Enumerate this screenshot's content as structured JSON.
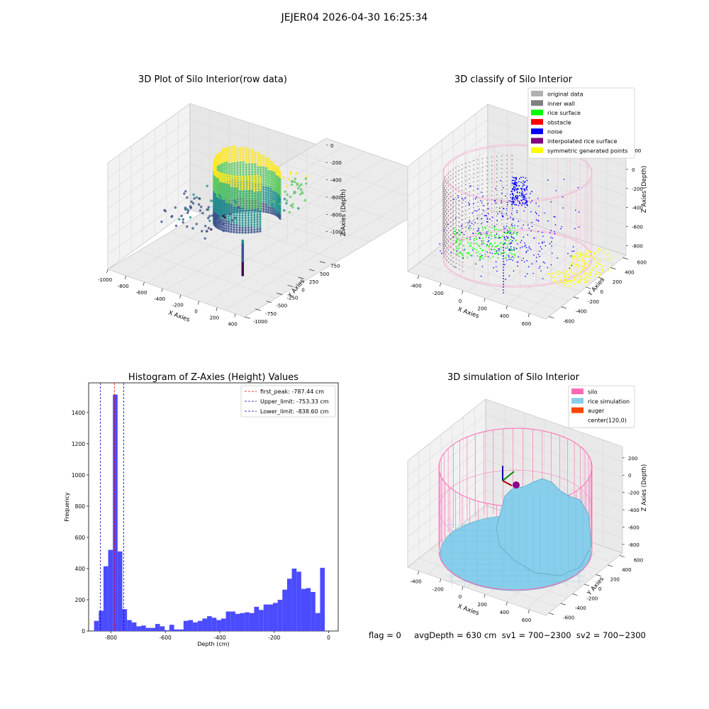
{
  "figure": {
    "suptitle": "JEJER04 2026-04-30 16:25:34",
    "footer": "flag = 0     avgDepth = 630 cm  sv1 = 700~2300  sv2 = 700~2300"
  },
  "colors": {
    "viridis": [
      "#440154",
      "#3b528b",
      "#21918c",
      "#5ec962",
      "#fde725"
    ],
    "pane": "#f2f2f2",
    "grid": "#d9d9d9",
    "hist_bar": "#4b4bff",
    "silo": "#ff69b4",
    "rice_sim": "#87ceeb",
    "auger": "#ff4500",
    "peak_line": "#ff0000",
    "limit_line": "#0000cc"
  },
  "chart_data": [
    {
      "id": "raw",
      "type": "scatter",
      "dims": 3,
      "title": "3D Plot of Silo Interior(row data)",
      "xlabel": "X Axies",
      "ylabel": "Y Axies",
      "zlabel": "Z Axies (Depth)",
      "xlim": [
        -1000,
        500
      ],
      "ylim": [
        -1000,
        900
      ],
      "zlim": [
        -1150,
        80
      ],
      "xticks": [
        -1000,
        -800,
        -600,
        -400,
        -200,
        0,
        200,
        400
      ],
      "yticks": [
        -1000,
        -750,
        -500,
        -250,
        0,
        250,
        500,
        750
      ],
      "zticks": [
        -1000,
        -800,
        -600,
        -400,
        -200,
        0
      ],
      "colormap": "viridis",
      "description_series": [
        {
          "name": "",
          "shape": "partial ring wall",
          "center": [
            -100,
            250
          ],
          "radius": 320,
          "z_range": [
            -820,
            -80
          ]
        },
        {
          "name": "",
          "shape": "vertical drop line",
          "x": 180,
          "y": -300,
          "z_range": [
            -1050,
            -650
          ]
        },
        {
          "name": "",
          "shape": "scattered low cloud",
          "x_range": [
            -850,
            -200
          ],
          "y_range": [
            -300,
            700
          ],
          "z_range": [
            -900,
            -650
          ]
        }
      ]
    },
    {
      "id": "classify",
      "type": "scatter",
      "dims": 3,
      "title": "3D classify of Silo Interior",
      "xlabel": "X Axies",
      "ylabel": "Y Axies",
      "zlabel": "Z Axies (Depth)",
      "xlim": [
        -500,
        750
      ],
      "ylim": [
        -650,
        650
      ],
      "zlim": [
        -900,
        200
      ],
      "xticks": [
        -400,
        -200,
        0,
        200,
        400,
        600
      ],
      "yticks": [
        -600,
        -400,
        -200,
        0,
        200,
        400,
        600
      ],
      "zticks": [
        -800,
        -600,
        -400,
        -200,
        0,
        200
      ],
      "legend_position": "upper right",
      "legend": [
        {
          "label": "original data",
          "color": "#b0b0b0"
        },
        {
          "label": "inner wall",
          "color": "#808080"
        },
        {
          "label": "rice surface",
          "color": "#00ff00"
        },
        {
          "label": "obstacle",
          "color": "#ff0000"
        },
        {
          "label": "noise",
          "color": "#0000ff"
        },
        {
          "label": "interpolated rice surface",
          "color": "#800080"
        },
        {
          "label": "symmetric generated points",
          "color": "#ffff00"
        }
      ]
    },
    {
      "id": "hist",
      "type": "bar",
      "title": "Histogram of Z-Axies (Height) Values",
      "xlabel": "Depth (cm)",
      "ylabel": "Frequency",
      "xlim": [
        -882,
        35
      ],
      "ylim": [
        0,
        1590
      ],
      "xticks": [
        -800,
        -600,
        -400,
        -200,
        0
      ],
      "yticks": [
        0,
        200,
        400,
        600,
        800,
        1000,
        1200,
        1400
      ],
      "bin_edges_start": -862,
      "bin_width": 17.3,
      "values": [
        65,
        130,
        415,
        520,
        1515,
        510,
        140,
        70,
        55,
        30,
        35,
        20,
        20,
        45,
        30,
        5,
        40,
        10,
        10,
        65,
        70,
        55,
        65,
        80,
        95,
        85,
        70,
        80,
        125,
        125,
        110,
        115,
        120,
        115,
        155,
        135,
        170,
        170,
        180,
        200,
        265,
        335,
        400,
        380,
        270,
        275,
        250,
        115,
        405
      ],
      "vlines": [
        {
          "x": -787.44,
          "label": "first_peak: -787.44 cm",
          "color": "#ff0000"
        },
        {
          "x": -753.33,
          "label": "Upper_limit: -753.33 cm",
          "color": "#0000cc"
        },
        {
          "x": -838.6,
          "label": "Lower_limit: -838.60 cm",
          "color": "#0000cc"
        }
      ],
      "legend_position": "upper right"
    },
    {
      "id": "sim",
      "type": "area",
      "dims": 3,
      "title": "3D simulation of Silo Interior",
      "xlabel": "X Axies",
      "ylabel": "Y Axies",
      "zlabel": "Z Axies (Depth)",
      "xlim": [
        -500,
        750
      ],
      "ylim": [
        -650,
        650
      ],
      "zlim": [
        -900,
        330
      ],
      "xticks": [
        -400,
        -200,
        0,
        200,
        400,
        600
      ],
      "yticks": [
        -600,
        -400,
        -200,
        0,
        200,
        400,
        600
      ],
      "zticks": [
        -800,
        -600,
        -400,
        -200,
        0,
        200
      ],
      "legend_position": "upper right",
      "legend": [
        {
          "label": "silo",
          "color": "#ff69b4"
        },
        {
          "label": "rice simulation",
          "color": "#87ceeb"
        },
        {
          "label": "auger",
          "color": "#ff4500"
        },
        {
          "label": "center(120,0)",
          "color": "#ffffff"
        }
      ],
      "silo": {
        "center": [
          120,
          0
        ],
        "radius": 540,
        "z_bottom": -880,
        "z_top": 0
      },
      "auger": {
        "x": 120,
        "y": 0,
        "z": 0
      }
    }
  ]
}
